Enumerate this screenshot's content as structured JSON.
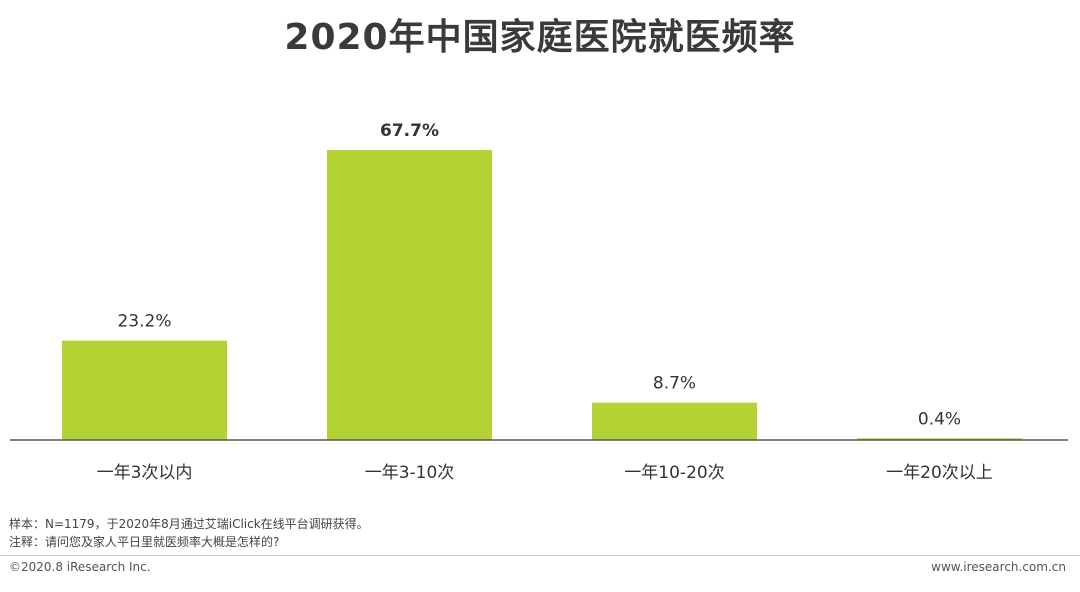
{
  "title": "2020年中国家庭医院就医频率",
  "chart_data": {
    "type": "bar",
    "title": "2020年中国家庭医院就医频率",
    "categories": [
      "一年3次以内",
      "一年3-10次",
      "一年10-20次",
      "一年20次以上"
    ],
    "values": [
      23.2,
      67.7,
      8.7,
      0.4
    ],
    "value_labels": [
      "23.2%",
      "67.7%",
      "8.7%",
      "0.4%"
    ],
    "unit": "%",
    "ylim": [
      0,
      67.7
    ],
    "grid": false,
    "bar_color": "#b3d335",
    "highlight_index": 1
  },
  "notes": {
    "sample": "样本：N=1179，于2020年8月通过艾瑞iClick在线平台调研获得。",
    "remark": "注释：请问您及家人平日里就医频率大概是怎样的?"
  },
  "footer": {
    "copyright": "©2020.8 iResearch Inc.",
    "website": "www.iresearch.com.cn"
  }
}
